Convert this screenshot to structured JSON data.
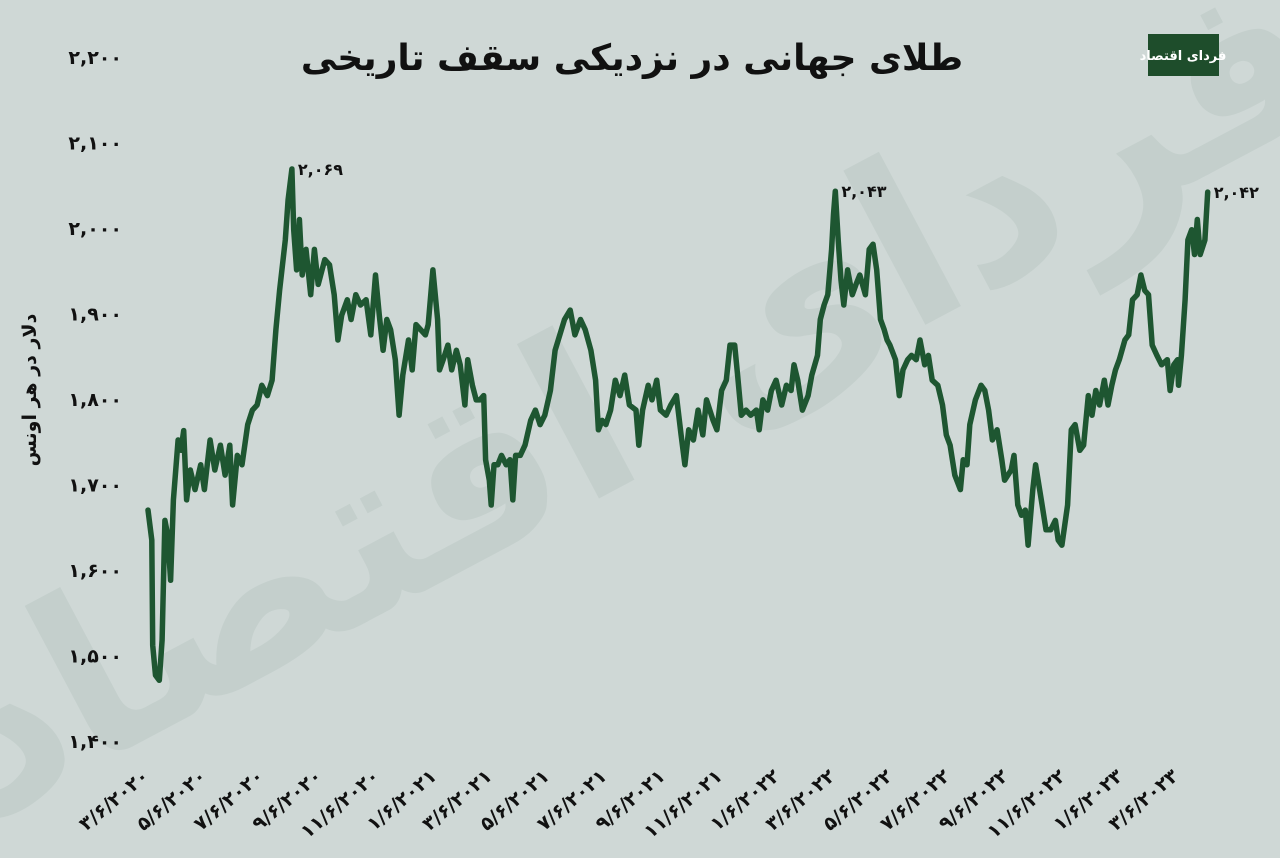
{
  "logo": {
    "text": "فردای اقتصاد",
    "bg": "#1e4d2b"
  },
  "watermark": "فردای اقتصاد",
  "chart_data": {
    "type": "line",
    "title": "طلای جهانی در نزدیکی سقف تاریخی",
    "xlabel": "",
    "ylabel": "دلار در هر اونس",
    "ylim": [
      1400,
      2200
    ],
    "yticks": [
      1400,
      1500,
      1600,
      1700,
      1800,
      1900,
      2000,
      2100,
      2200
    ],
    "ytick_labels": [
      "۱,۴۰۰",
      "۱,۵۰۰",
      "۱,۶۰۰",
      "۱,۷۰۰",
      "۱,۸۰۰",
      "۱,۹۰۰",
      "۲,۰۰۰",
      "۲,۱۰۰",
      "۲,۲۰۰"
    ],
    "xticks": [
      "2020-03-06",
      "2020-05-06",
      "2020-07-06",
      "2020-09-06",
      "2020-11-06",
      "2021-01-06",
      "2021-03-06",
      "2021-05-06",
      "2021-07-06",
      "2021-09-06",
      "2021-11-06",
      "2022-01-06",
      "2022-03-06",
      "2022-05-06",
      "2022-07-06",
      "2022-09-06",
      "2022-11-06",
      "2023-01-06",
      "2023-03-06"
    ],
    "xtick_labels": [
      "۳/۶/۲۰۲۰",
      "۵/۶/۲۰۲۰",
      "۷/۶/۲۰۲۰",
      "۹/۶/۲۰۲۰",
      "۱۱/۶/۲۰۲۰",
      "۱/۶/۲۰۲۱",
      "۳/۶/۲۰۲۱",
      "۵/۶/۲۰۲۱",
      "۷/۶/۲۰۲۱",
      "۹/۶/۲۰۲۱",
      "۱۱/۶/۲۰۲۱",
      "۱/۶/۲۰۲۲",
      "۳/۶/۲۰۲۲",
      "۵/۶/۲۰۲۲",
      "۷/۶/۲۰۲۲",
      "۹/۶/۲۰۲۲",
      "۱۱/۶/۲۰۲۲",
      "۱/۶/۲۰۲۳",
      "۳/۶/۲۰۲۳"
    ],
    "grid": false,
    "legend": "none",
    "color": "#1e5631",
    "annotations": [
      {
        "x": "2020-08-06",
        "y": 2069,
        "text": "۲,۰۶۹"
      },
      {
        "x": "2022-03-07",
        "y": 2043,
        "text": "۲,۰۴۳"
      },
      {
        "x": "2023-04-07",
        "y": 2042,
        "text": "۲,۰۴۲"
      }
    ],
    "series": [
      {
        "points": [
          [
            "2020-03-06",
            1670
          ],
          [
            "2020-03-10",
            1635
          ],
          [
            "2020-03-11",
            1512
          ],
          [
            "2020-03-14",
            1477
          ],
          [
            "2020-03-18",
            1471
          ],
          [
            "2020-03-21",
            1518
          ],
          [
            "2020-03-24",
            1658
          ],
          [
            "2020-03-27",
            1641
          ],
          [
            "2020-03-30",
            1588
          ],
          [
            "2020-04-02",
            1682
          ],
          [
            "2020-04-07",
            1752
          ],
          [
            "2020-04-10",
            1740
          ],
          [
            "2020-04-13",
            1763
          ],
          [
            "2020-04-16",
            1682
          ],
          [
            "2020-04-20",
            1717
          ],
          [
            "2020-04-25",
            1694
          ],
          [
            "2020-05-01",
            1723
          ],
          [
            "2020-05-05",
            1694
          ],
          [
            "2020-05-11",
            1752
          ],
          [
            "2020-05-16",
            1717
          ],
          [
            "2020-05-22",
            1746
          ],
          [
            "2020-05-27",
            1711
          ],
          [
            "2020-06-01",
            1746
          ],
          [
            "2020-06-04",
            1676
          ],
          [
            "2020-06-09",
            1734
          ],
          [
            "2020-06-14",
            1723
          ],
          [
            "2020-06-20",
            1770
          ],
          [
            "2020-06-25",
            1787
          ],
          [
            "2020-06-30",
            1793
          ],
          [
            "2020-07-05",
            1816
          ],
          [
            "2020-07-11",
            1804
          ],
          [
            "2020-07-16",
            1822
          ],
          [
            "2020-07-20",
            1881
          ],
          [
            "2020-07-24",
            1927
          ],
          [
            "2020-07-30",
            1986
          ],
          [
            "2020-08-02",
            2033
          ],
          [
            "2020-08-06",
            2069
          ],
          [
            "2020-08-08",
            1998
          ],
          [
            "2020-08-11",
            1951
          ],
          [
            "2020-08-14",
            2010
          ],
          [
            "2020-08-17",
            1945
          ],
          [
            "2020-08-21",
            1975
          ],
          [
            "2020-08-26",
            1922
          ],
          [
            "2020-08-30",
            1975
          ],
          [
            "2020-09-03",
            1934
          ],
          [
            "2020-09-10",
            1963
          ],
          [
            "2020-09-15",
            1957
          ],
          [
            "2020-09-20",
            1922
          ],
          [
            "2020-09-24",
            1869
          ],
          [
            "2020-09-28",
            1898
          ],
          [
            "2020-10-04",
            1916
          ],
          [
            "2020-10-08",
            1893
          ],
          [
            "2020-10-13",
            1922
          ],
          [
            "2020-10-18",
            1910
          ],
          [
            "2020-10-24",
            1916
          ],
          [
            "2020-10-29",
            1875
          ],
          [
            "2020-11-03",
            1945
          ],
          [
            "2020-11-07",
            1898
          ],
          [
            "2020-11-11",
            1857
          ],
          [
            "2020-11-15",
            1893
          ],
          [
            "2020-11-19",
            1881
          ],
          [
            "2020-11-24",
            1846
          ],
          [
            "2020-11-28",
            1781
          ],
          [
            "2020-12-02",
            1828
          ],
          [
            "2020-12-08",
            1869
          ],
          [
            "2020-12-12",
            1834
          ],
          [
            "2020-12-16",
            1887
          ],
          [
            "2020-12-21",
            1881
          ],
          [
            "2020-12-26",
            1875
          ],
          [
            "2020-12-29",
            1887
          ],
          [
            "2021-01-03",
            1951
          ],
          [
            "2021-01-08",
            1893
          ],
          [
            "2021-01-10",
            1834
          ],
          [
            "2021-01-14",
            1846
          ],
          [
            "2021-01-19",
            1863
          ],
          [
            "2021-01-23",
            1834
          ],
          [
            "2021-01-28",
            1857
          ],
          [
            "2021-02-01",
            1840
          ],
          [
            "2021-02-06",
            1793
          ],
          [
            "2021-02-09",
            1846
          ],
          [
            "2021-02-14",
            1816
          ],
          [
            "2021-02-18",
            1799
          ],
          [
            "2021-02-22",
            1799
          ],
          [
            "2021-02-26",
            1804
          ],
          [
            "2021-02-28",
            1729
          ],
          [
            "2021-03-04",
            1705
          ],
          [
            "2021-03-06",
            1676
          ],
          [
            "2021-03-09",
            1723
          ],
          [
            "2021-03-13",
            1723
          ],
          [
            "2021-03-17",
            1734
          ],
          [
            "2021-03-22",
            1723
          ],
          [
            "2021-03-26",
            1729
          ],
          [
            "2021-03-29",
            1682
          ],
          [
            "2021-04-01",
            1734
          ],
          [
            "2021-04-06",
            1734
          ],
          [
            "2021-04-11",
            1746
          ],
          [
            "2021-04-17",
            1775
          ],
          [
            "2021-04-22",
            1787
          ],
          [
            "2021-04-27",
            1770
          ],
          [
            "2021-05-02",
            1781
          ],
          [
            "2021-05-08",
            1810
          ],
          [
            "2021-05-13",
            1857
          ],
          [
            "2021-05-18",
            1875
          ],
          [
            "2021-05-23",
            1893
          ],
          [
            "2021-05-29",
            1904
          ],
          [
            "2021-06-03",
            1875
          ],
          [
            "2021-06-09",
            1893
          ],
          [
            "2021-06-14",
            1881
          ],
          [
            "2021-06-20",
            1857
          ],
          [
            "2021-06-25",
            1822
          ],
          [
            "2021-06-28",
            1764
          ],
          [
            "2021-07-02",
            1775
          ],
          [
            "2021-07-06",
            1770
          ],
          [
            "2021-07-11",
            1787
          ],
          [
            "2021-07-16",
            1822
          ],
          [
            "2021-07-21",
            1804
          ],
          [
            "2021-07-26",
            1828
          ],
          [
            "2021-07-31",
            1793
          ],
          [
            "2021-08-07",
            1787
          ],
          [
            "2021-08-10",
            1746
          ],
          [
            "2021-08-14",
            1787
          ],
          [
            "2021-08-20",
            1816
          ],
          [
            "2021-08-24",
            1799
          ],
          [
            "2021-08-29",
            1822
          ],
          [
            "2021-09-02",
            1787
          ],
          [
            "2021-09-08",
            1781
          ],
          [
            "2021-09-13",
            1793
          ],
          [
            "2021-09-19",
            1804
          ],
          [
            "2021-09-24",
            1758
          ],
          [
            "2021-09-28",
            1723
          ],
          [
            "2021-10-02",
            1764
          ],
          [
            "2021-10-07",
            1752
          ],
          [
            "2021-10-12",
            1787
          ],
          [
            "2021-10-17",
            1758
          ],
          [
            "2021-10-21",
            1799
          ],
          [
            "2021-10-28",
            1775
          ],
          [
            "2021-11-01",
            1764
          ],
          [
            "2021-11-06",
            1810
          ],
          [
            "2021-11-11",
            1822
          ],
          [
            "2021-11-15",
            1863
          ],
          [
            "2021-11-20",
            1863
          ],
          [
            "2021-11-23",
            1828
          ],
          [
            "2021-11-27",
            1781
          ],
          [
            "2021-12-02",
            1787
          ],
          [
            "2021-12-07",
            1781
          ],
          [
            "2021-12-13",
            1787
          ],
          [
            "2021-12-16",
            1764
          ],
          [
            "2021-12-20",
            1799
          ],
          [
            "2021-12-25",
            1787
          ],
          [
            "2021-12-29",
            1810
          ],
          [
            "2022-01-03",
            1822
          ],
          [
            "2022-01-09",
            1793
          ],
          [
            "2022-01-14",
            1816
          ],
          [
            "2022-01-19",
            1810
          ],
          [
            "2022-01-22",
            1840
          ],
          [
            "2022-01-26",
            1822
          ],
          [
            "2022-01-31",
            1787
          ],
          [
            "2022-02-06",
            1804
          ],
          [
            "2022-02-10",
            1828
          ],
          [
            "2022-02-16",
            1851
          ],
          [
            "2022-02-19",
            1893
          ],
          [
            "2022-02-23",
            1910
          ],
          [
            "2022-02-27",
            1922
          ],
          [
            "2022-03-03",
            1975
          ],
          [
            "2022-03-05",
            2016
          ],
          [
            "2022-03-07",
            2043
          ],
          [
            "2022-03-10",
            1986
          ],
          [
            "2022-03-13",
            1939
          ],
          [
            "2022-03-16",
            1910
          ],
          [
            "2022-03-20",
            1951
          ],
          [
            "2022-03-25",
            1922
          ],
          [
            "2022-03-29",
            1934
          ],
          [
            "2022-04-02",
            1945
          ],
          [
            "2022-04-08",
            1922
          ],
          [
            "2022-04-12",
            1975
          ],
          [
            "2022-04-16",
            1981
          ],
          [
            "2022-04-20",
            1951
          ],
          [
            "2022-04-24",
            1893
          ],
          [
            "2022-04-28",
            1881
          ],
          [
            "2022-05-01",
            1869
          ],
          [
            "2022-05-04",
            1863
          ],
          [
            "2022-05-10",
            1846
          ],
          [
            "2022-05-14",
            1804
          ],
          [
            "2022-05-18",
            1834
          ],
          [
            "2022-05-23",
            1846
          ],
          [
            "2022-05-27",
            1851
          ],
          [
            "2022-06-01",
            1846
          ],
          [
            "2022-06-05",
            1869
          ],
          [
            "2022-06-10",
            1840
          ],
          [
            "2022-06-14",
            1851
          ],
          [
            "2022-06-18",
            1822
          ],
          [
            "2022-06-24",
            1816
          ],
          [
            "2022-06-29",
            1793
          ],
          [
            "2022-07-03",
            1758
          ],
          [
            "2022-07-07",
            1746
          ],
          [
            "2022-07-12",
            1711
          ],
          [
            "2022-07-18",
            1694
          ],
          [
            "2022-07-21",
            1729
          ],
          [
            "2022-07-25",
            1723
          ],
          [
            "2022-07-28",
            1770
          ],
          [
            "2022-08-03",
            1799
          ],
          [
            "2022-08-09",
            1816
          ],
          [
            "2022-08-13",
            1810
          ],
          [
            "2022-08-17",
            1787
          ],
          [
            "2022-08-21",
            1752
          ],
          [
            "2022-08-26",
            1764
          ],
          [
            "2022-08-31",
            1729
          ],
          [
            "2022-09-03",
            1705
          ],
          [
            "2022-09-10",
            1717
          ],
          [
            "2022-09-13",
            1734
          ],
          [
            "2022-09-17",
            1676
          ],
          [
            "2022-09-21",
            1664
          ],
          [
            "2022-09-25",
            1670
          ],
          [
            "2022-09-28",
            1629
          ],
          [
            "2022-10-03",
            1694
          ],
          [
            "2022-10-06",
            1723
          ],
          [
            "2022-10-12",
            1682
          ],
          [
            "2022-10-17",
            1647
          ],
          [
            "2022-10-22",
            1647
          ],
          [
            "2022-10-27",
            1658
          ],
          [
            "2022-10-30",
            1635
          ],
          [
            "2022-11-03",
            1629
          ],
          [
            "2022-11-09",
            1676
          ],
          [
            "2022-11-13",
            1764
          ],
          [
            "2022-11-17",
            1770
          ],
          [
            "2022-11-22",
            1740
          ],
          [
            "2022-11-26",
            1746
          ],
          [
            "2022-12-01",
            1804
          ],
          [
            "2022-12-05",
            1781
          ],
          [
            "2022-12-09",
            1810
          ],
          [
            "2022-12-13",
            1793
          ],
          [
            "2022-12-18",
            1822
          ],
          [
            "2022-12-22",
            1793
          ],
          [
            "2022-12-26",
            1816
          ],
          [
            "2022-12-30",
            1834
          ],
          [
            "2023-01-03",
            1846
          ],
          [
            "2023-01-09",
            1869
          ],
          [
            "2023-01-13",
            1875
          ],
          [
            "2023-01-17",
            1916
          ],
          [
            "2023-01-22",
            1922
          ],
          [
            "2023-01-26",
            1945
          ],
          [
            "2023-01-30",
            1927
          ],
          [
            "2023-02-03",
            1922
          ],
          [
            "2023-02-07",
            1863
          ],
          [
            "2023-02-12",
            1851
          ],
          [
            "2023-02-17",
            1840
          ],
          [
            "2023-02-23",
            1846
          ],
          [
            "2023-02-26",
            1810
          ],
          [
            "2023-03-02",
            1840
          ],
          [
            "2023-03-06",
            1846
          ],
          [
            "2023-03-07",
            1816
          ],
          [
            "2023-03-10",
            1851
          ],
          [
            "2023-03-14",
            1916
          ],
          [
            "2023-03-17",
            1986
          ],
          [
            "2023-03-21",
            1998
          ],
          [
            "2023-03-24",
            1969
          ],
          [
            "2023-03-27",
            2010
          ],
          [
            "2023-03-30",
            1969
          ],
          [
            "2023-04-04",
            1986
          ],
          [
            "2023-04-07",
            2042
          ]
        ]
      }
    ]
  }
}
